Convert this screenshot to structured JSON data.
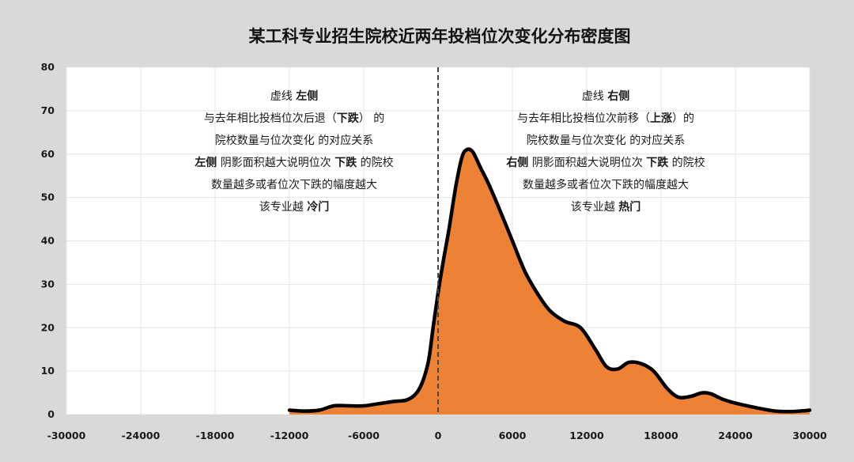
{
  "chart_data": {
    "type": "area",
    "title": "某工科专业招生院校近两年投档位次变化分布密度图",
    "xlabel": "",
    "ylabel": "",
    "xlim": [
      -30000,
      30000
    ],
    "ylim": [
      0,
      80
    ],
    "x_ticks": [
      -30000,
      -24000,
      -18000,
      -12000,
      -6000,
      0,
      6000,
      12000,
      18000,
      24000,
      30000
    ],
    "x_tick_labels": [
      "-30000",
      "-24000",
      "-18000",
      "-12000",
      "-6000",
      "0",
      "6000",
      "12000",
      "18000",
      "24000",
      "30000"
    ],
    "y_ticks": [
      0,
      10,
      20,
      30,
      40,
      50,
      60,
      70,
      80
    ],
    "y_tick_labels": [
      "0",
      "10",
      "20",
      "30",
      "40",
      "50",
      "60",
      "70",
      "80"
    ],
    "grid": true,
    "reference_line_x": 0,
    "colors": {
      "fill": "#ee8234",
      "outline": "#000000",
      "grid": "#e4e4e4",
      "reference_line": "#444444",
      "background": "#d9d9d9",
      "plot_background": "#ffffff"
    },
    "series": [
      {
        "x": [
          -12000,
          -10800,
          -9600,
          -8400,
          -7200,
          -6000,
          -4800,
          -3600,
          -2400,
          -1500,
          -800,
          -400,
          0,
          400,
          900,
          1400,
          1900,
          2300,
          2800,
          3400,
          4100,
          5000,
          6000,
          7000,
          8000,
          9000,
          10200,
          11500,
          12700,
          13600,
          14500,
          15400,
          16400,
          17400,
          18500,
          19400,
          20400,
          21300,
          22000,
          23000,
          24200,
          25800,
          27200,
          28600,
          30000
        ],
        "y": [
          1,
          0.8,
          1,
          2,
          2,
          2,
          2.5,
          3,
          3.5,
          6,
          12,
          20,
          28,
          35,
          43,
          52,
          59,
          61,
          60.5,
          57,
          53,
          47,
          40,
          33,
          28,
          24,
          21.5,
          20,
          15,
          11,
          10.5,
          12,
          11.7,
          10,
          6,
          4,
          4.2,
          5,
          4.8,
          3.5,
          2.5,
          1.5,
          0.8,
          0.7,
          1
        ]
      }
    ],
    "annotations": {
      "left": {
        "lines": [
          [
            {
              "text": "虚线 ",
              "bold": false
            },
            {
              "text": "左侧",
              "bold": true
            }
          ],
          [
            {
              "text": "与去年相比投档位次后退（",
              "bold": false
            },
            {
              "text": "下跌",
              "bold": true
            },
            {
              "text": "） 的",
              "bold": false
            }
          ],
          [
            {
              "text": "院校数量与位次变化 的对应关系",
              "bold": false
            }
          ],
          [
            {
              "text": "左侧",
              "bold": true
            },
            {
              "text": " 阴影面积越大说明位次 ",
              "bold": false
            },
            {
              "text": "下跌",
              "bold": true
            },
            {
              "text": " 的院校",
              "bold": false
            }
          ],
          [
            {
              "text": "数量越多或者位次下跌的幅度越大",
              "bold": false
            }
          ],
          [
            {
              "text": "该专业越 ",
              "bold": false
            },
            {
              "text": "冷门",
              "bold": true
            }
          ]
        ]
      },
      "right": {
        "lines": [
          [
            {
              "text": "虚线 ",
              "bold": false
            },
            {
              "text": "右侧",
              "bold": true
            }
          ],
          [
            {
              "text": "与去年相比投档位次前移（",
              "bold": false
            },
            {
              "text": "上涨",
              "bold": true
            },
            {
              "text": "）的",
              "bold": false
            }
          ],
          [
            {
              "text": "院校数量与位次变化 的对应关系",
              "bold": false
            }
          ],
          [
            {
              "text": "右侧",
              "bold": true
            },
            {
              "text": " 阴影面积越大说明位次 ",
              "bold": false
            },
            {
              "text": "下跌",
              "bold": true
            },
            {
              "text": " 的院校",
              "bold": false
            }
          ],
          [
            {
              "text": "数量越多或者位次下跌的幅度越大",
              "bold": false
            }
          ],
          [
            {
              "text": "该专业越 ",
              "bold": false
            },
            {
              "text": "热门",
              "bold": true
            }
          ]
        ]
      }
    }
  }
}
